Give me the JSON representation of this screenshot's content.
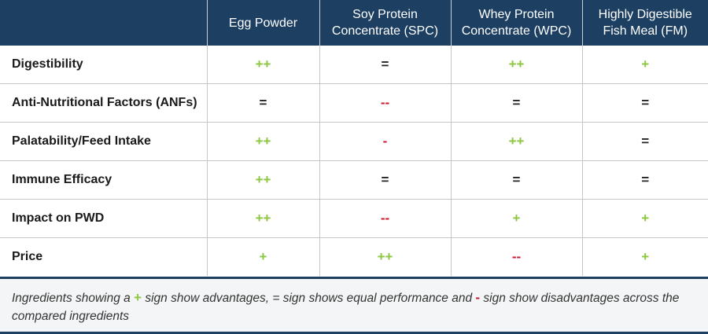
{
  "table": {
    "columns": [
      "",
      "Egg Powder",
      "Soy Protein Concentrate (SPC)",
      "Whey Protein Concentrate (WPC)",
      "Highly Digestible Fish Meal (FM)"
    ],
    "rows": [
      {
        "label": "Digestibility",
        "cells": [
          {
            "text": "++",
            "color": "#8dc63f"
          },
          {
            "text": "=",
            "color": "#222222"
          },
          {
            "text": "++",
            "color": "#8dc63f"
          },
          {
            "text": "+",
            "color": "#8dc63f"
          }
        ]
      },
      {
        "label": "Anti-Nutritional Factors (ANFs)",
        "cells": [
          {
            "text": "=",
            "color": "#222222"
          },
          {
            "text": "--",
            "color": "#d0142c"
          },
          {
            "text": "=",
            "color": "#222222"
          },
          {
            "text": "=",
            "color": "#222222"
          }
        ]
      },
      {
        "label": "Palatability/Feed Intake",
        "cells": [
          {
            "text": "++",
            "color": "#8dc63f"
          },
          {
            "text": "-",
            "color": "#d0142c"
          },
          {
            "text": "++",
            "color": "#8dc63f"
          },
          {
            "text": "=",
            "color": "#222222"
          }
        ]
      },
      {
        "label": "Immune Efficacy",
        "cells": [
          {
            "text": "++",
            "color": "#8dc63f"
          },
          {
            "text": "=",
            "color": "#222222"
          },
          {
            "text": "=",
            "color": "#222222"
          },
          {
            "text": "=",
            "color": "#222222"
          }
        ]
      },
      {
        "label": "Impact on PWD",
        "cells": [
          {
            "text": "++",
            "color": "#8dc63f"
          },
          {
            "text": "--",
            "color": "#d0142c"
          },
          {
            "text": "+",
            "color": "#8dc63f"
          },
          {
            "text": "+",
            "color": "#8dc63f"
          }
        ]
      },
      {
        "label": "Price",
        "cells": [
          {
            "text": "+",
            "color": "#8dc63f"
          },
          {
            "text": "++",
            "color": "#8dc63f"
          },
          {
            "text": "--",
            "color": "#d0142c"
          },
          {
            "text": "+",
            "color": "#8dc63f"
          }
        ]
      }
    ]
  },
  "footnote": [
    {
      "text": "Ingredients showing a "
    },
    {
      "text": "+",
      "color": "#8dc63f"
    },
    {
      "text": " sign show advantages, = sign shows equal performance and "
    },
    {
      "text": "-",
      "color": "#d0142c"
    },
    {
      "text": " sign show disadvantages across the compared ingredients"
    }
  ]
}
